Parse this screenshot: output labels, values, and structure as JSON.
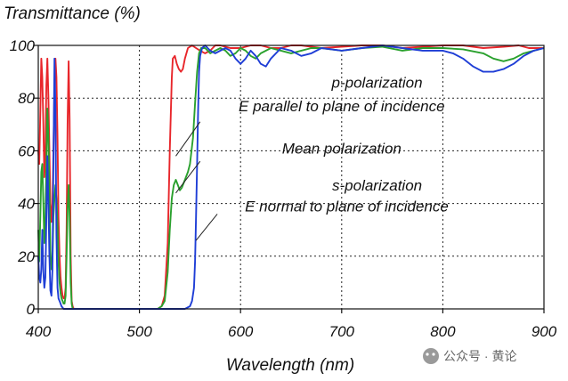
{
  "chart_data": {
    "type": "line",
    "title": "Transmittance (%)",
    "xlabel": "Wavelength (nm)",
    "ylabel": "",
    "xlim": [
      400,
      900
    ],
    "ylim": [
      0,
      100
    ],
    "xticks": [
      400,
      500,
      600,
      700,
      800,
      900
    ],
    "yticks": [
      0,
      20,
      40,
      60,
      80,
      100
    ],
    "grid": true,
    "series": [
      {
        "name": "p-polarization",
        "color": "#e8262b",
        "points": [
          [
            400,
            60
          ],
          [
            401,
            55
          ],
          [
            402,
            75
          ],
          [
            403,
            95
          ],
          [
            404,
            88
          ],
          [
            405,
            70
          ],
          [
            406,
            50
          ],
          [
            407,
            60
          ],
          [
            408,
            85
          ],
          [
            409,
            95
          ],
          [
            410,
            80
          ],
          [
            411,
            60
          ],
          [
            412,
            40
          ],
          [
            413,
            33
          ],
          [
            414,
            40
          ],
          [
            415,
            60
          ],
          [
            416,
            85
          ],
          [
            417,
            95
          ],
          [
            418,
            88
          ],
          [
            419,
            65
          ],
          [
            420,
            35
          ],
          [
            421,
            20
          ],
          [
            422,
            12
          ],
          [
            423,
            8
          ],
          [
            424,
            5
          ],
          [
            425,
            4
          ],
          [
            426,
            4
          ],
          [
            427,
            8
          ],
          [
            428,
            30
          ],
          [
            429,
            70
          ],
          [
            430,
            94
          ],
          [
            431,
            72
          ],
          [
            432,
            20
          ],
          [
            433,
            3
          ],
          [
            434,
            1
          ],
          [
            435,
            0
          ],
          [
            440,
            0
          ],
          [
            460,
            0
          ],
          [
            480,
            0
          ],
          [
            500,
            0
          ],
          [
            510,
            0
          ],
          [
            518,
            0
          ],
          [
            522,
            1
          ],
          [
            525,
            5
          ],
          [
            528,
            25
          ],
          [
            530,
            60
          ],
          [
            532,
            88
          ],
          [
            533,
            95
          ],
          [
            535,
            96
          ],
          [
            537,
            93
          ],
          [
            539,
            91
          ],
          [
            541,
            90
          ],
          [
            543,
            91
          ],
          [
            545,
            95
          ],
          [
            548,
            99
          ],
          [
            552,
            100
          ],
          [
            556,
            99
          ],
          [
            560,
            98
          ],
          [
            565,
            97
          ],
          [
            570,
            98
          ],
          [
            575,
            100
          ],
          [
            580,
            100
          ],
          [
            590,
            99
          ],
          [
            600,
            99
          ],
          [
            610,
            100
          ],
          [
            620,
            100
          ],
          [
            630,
            99
          ],
          [
            640,
            99
          ],
          [
            650,
            100
          ],
          [
            660,
            100
          ],
          [
            680,
            99
          ],
          [
            700,
            99.5
          ],
          [
            720,
            100
          ],
          [
            740,
            100
          ],
          [
            760,
            99
          ],
          [
            780,
            99.5
          ],
          [
            800,
            100
          ],
          [
            820,
            100
          ],
          [
            840,
            99
          ],
          [
            860,
            99.5
          ],
          [
            875,
            100
          ],
          [
            885,
            99
          ],
          [
            895,
            99
          ],
          [
            900,
            99
          ]
        ]
      },
      {
        "name": "Mean polarization",
        "color": "#2aa12e",
        "points": [
          [
            400,
            30
          ],
          [
            401,
            18
          ],
          [
            402,
            35
          ],
          [
            403,
            52
          ],
          [
            404,
            55
          ],
          [
            405,
            40
          ],
          [
            406,
            25
          ],
          [
            407,
            35
          ],
          [
            408,
            55
          ],
          [
            409,
            76
          ],
          [
            410,
            65
          ],
          [
            411,
            45
          ],
          [
            412,
            22
          ],
          [
            413,
            15
          ],
          [
            414,
            18
          ],
          [
            415,
            35
          ],
          [
            416,
            42
          ],
          [
            417,
            47
          ],
          [
            418,
            42
          ],
          [
            419,
            32
          ],
          [
            420,
            18
          ],
          [
            421,
            10
          ],
          [
            422,
            6
          ],
          [
            423,
            4
          ],
          [
            424,
            3
          ],
          [
            425,
            2
          ],
          [
            426,
            2
          ],
          [
            427,
            5
          ],
          [
            428,
            20
          ],
          [
            429,
            38
          ],
          [
            430,
            47
          ],
          [
            431,
            35
          ],
          [
            432,
            10
          ],
          [
            433,
            2
          ],
          [
            434,
            0
          ],
          [
            440,
            0
          ],
          [
            500,
            0
          ],
          [
            518,
            0
          ],
          [
            522,
            1
          ],
          [
            525,
            3
          ],
          [
            528,
            14
          ],
          [
            530,
            30
          ],
          [
            532,
            42
          ],
          [
            534,
            47
          ],
          [
            536,
            49
          ],
          [
            538,
            47
          ],
          [
            540,
            45
          ],
          [
            542,
            46
          ],
          [
            545,
            49
          ],
          [
            548,
            52
          ],
          [
            550,
            55
          ],
          [
            553,
            65
          ],
          [
            555,
            78
          ],
          [
            557,
            90
          ],
          [
            559,
            97
          ],
          [
            561,
            99
          ],
          [
            565,
            99
          ],
          [
            570,
            97
          ],
          [
            575,
            98
          ],
          [
            580,
            99
          ],
          [
            585,
            98
          ],
          [
            590,
            96
          ],
          [
            595,
            97
          ],
          [
            600,
            99
          ],
          [
            605,
            98
          ],
          [
            610,
            96
          ],
          [
            615,
            95
          ],
          [
            620,
            97
          ],
          [
            630,
            99
          ],
          [
            640,
            98
          ],
          [
            650,
            97
          ],
          [
            660,
            98
          ],
          [
            670,
            99
          ],
          [
            680,
            99
          ],
          [
            700,
            98
          ],
          [
            720,
            99
          ],
          [
            740,
            99.5
          ],
          [
            760,
            98
          ],
          [
            780,
            99
          ],
          [
            800,
            99
          ],
          [
            820,
            98.5
          ],
          [
            840,
            97
          ],
          [
            850,
            95
          ],
          [
            860,
            94
          ],
          [
            870,
            95
          ],
          [
            880,
            97
          ],
          [
            890,
            98
          ],
          [
            900,
            99
          ]
        ]
      },
      {
        "name": "s-polarization",
        "color": "#1f3ed6",
        "points": [
          [
            400,
            20
          ],
          [
            401,
            12
          ],
          [
            402,
            10
          ],
          [
            403,
            15
          ],
          [
            404,
            30
          ],
          [
            405,
            14
          ],
          [
            406,
            8
          ],
          [
            407,
            12
          ],
          [
            408,
            35
          ],
          [
            409,
            58
          ],
          [
            410,
            40
          ],
          [
            411,
            20
          ],
          [
            412,
            7
          ],
          [
            413,
            5
          ],
          [
            414,
            15
          ],
          [
            415,
            55
          ],
          [
            416,
            95
          ],
          [
            417,
            75
          ],
          [
            418,
            28
          ],
          [
            419,
            8
          ],
          [
            420,
            4
          ],
          [
            421,
            3
          ],
          [
            422,
            2
          ],
          [
            423,
            1
          ],
          [
            425,
            0
          ],
          [
            430,
            0
          ],
          [
            450,
            0
          ],
          [
            500,
            0
          ],
          [
            530,
            0
          ],
          [
            540,
            0
          ],
          [
            545,
            0
          ],
          [
            550,
            1
          ],
          [
            552,
            3
          ],
          [
            554,
            8
          ],
          [
            555,
            18
          ],
          [
            556,
            35
          ],
          [
            557,
            55
          ],
          [
            558,
            75
          ],
          [
            559,
            90
          ],
          [
            560,
            96
          ],
          [
            562,
            99
          ],
          [
            565,
            100
          ],
          [
            570,
            98
          ],
          [
            575,
            97
          ],
          [
            580,
            98
          ],
          [
            585,
            99
          ],
          [
            590,
            98
          ],
          [
            595,
            95
          ],
          [
            600,
            93
          ],
          [
            605,
            95
          ],
          [
            610,
            98
          ],
          [
            615,
            96
          ],
          [
            620,
            93
          ],
          [
            625,
            92
          ],
          [
            630,
            95
          ],
          [
            640,
            99
          ],
          [
            650,
            98
          ],
          [
            660,
            96
          ],
          [
            670,
            97
          ],
          [
            680,
            99
          ],
          [
            700,
            98
          ],
          [
            720,
            99
          ],
          [
            740,
            100
          ],
          [
            760,
            99
          ],
          [
            780,
            98
          ],
          [
            800,
            98
          ],
          [
            810,
            97
          ],
          [
            820,
            95
          ],
          [
            830,
            92
          ],
          [
            840,
            90
          ],
          [
            850,
            90
          ],
          [
            860,
            91
          ],
          [
            870,
            93
          ],
          [
            880,
            96
          ],
          [
            890,
            98
          ],
          [
            900,
            99
          ]
        ]
      }
    ],
    "annotations": [
      {
        "text": "p-polarization",
        "x": 735,
        "y": 84
      },
      {
        "text": "E parallel to plane of incidence",
        "x": 700,
        "y": 75
      },
      {
        "text": "Mean polarization",
        "x": 700,
        "y": 59
      },
      {
        "text": "s-polarization",
        "x": 735,
        "y": 45
      },
      {
        "text": "E normal to plane of incidence",
        "x": 705,
        "y": 37
      }
    ],
    "pointers": [
      {
        "from": [
          536,
          58
        ],
        "to": [
          560,
          71
        ]
      },
      {
        "from": [
          536,
          44
        ],
        "to": [
          560,
          56
        ]
      },
      {
        "from": [
          556,
          26
        ],
        "to": [
          577,
          36
        ]
      }
    ]
  },
  "watermark": "公众号 · 黄论"
}
